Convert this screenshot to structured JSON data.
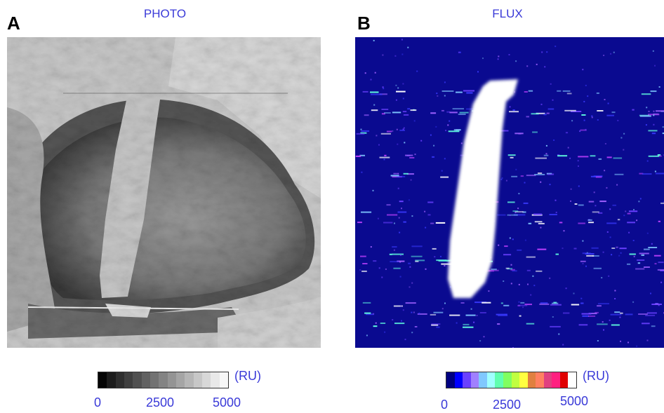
{
  "panels": [
    {
      "letter": "A",
      "title": "PHOTO",
      "colorbar": {
        "unit": "(RU)",
        "ticks": [
          "0",
          "2500",
          "5000"
        ],
        "colors": [
          "#050505",
          "#1c1c1c",
          "#2e2e2e",
          "#3f3f3f",
          "#505050",
          "#616161",
          "#727272",
          "#838383",
          "#949494",
          "#a5a5a5",
          "#b6b6b6",
          "#c7c7c7",
          "#d8d8d8",
          "#e9e9e9",
          "#f7f7f7"
        ]
      }
    },
    {
      "letter": "B",
      "title": "FLUX",
      "colorbar": {
        "unit": "(RU)",
        "ticks": [
          "0",
          "2500",
          "5000"
        ],
        "colors": [
          "#000080",
          "#0000ff",
          "#6a40ff",
          "#a080ff",
          "#80c8ff",
          "#a0ffff",
          "#60ffb0",
          "#80ff60",
          "#c0ff40",
          "#ffff40",
          "#e08040",
          "#ff8060",
          "#e04080",
          "#ff2080",
          "#e00000",
          "#ffffff"
        ]
      }
    }
  ]
}
